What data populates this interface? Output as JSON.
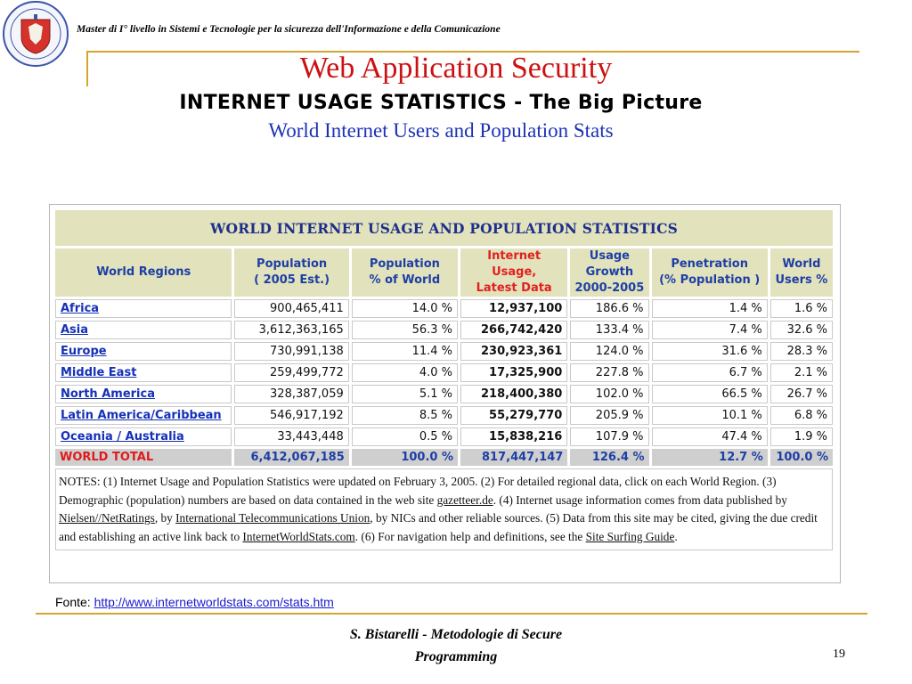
{
  "header": {
    "master_text": "Master di I° livello in Sistemi e Tecnologie per la sicurezza dell'Informazione e della Comunicazione",
    "slide_title": "Web Application Security"
  },
  "headings": {
    "main": "INTERNET USAGE STATISTICS - The Big Picture",
    "sub": "World Internet Users and Population Stats"
  },
  "table": {
    "caption": "WORLD INTERNET USAGE AND POPULATION STATISTICS",
    "columns": [
      [
        "World Regions"
      ],
      [
        "Population",
        "( 2005 Est.)"
      ],
      [
        "Population",
        "% of World"
      ],
      [
        "Internet Usage,",
        "Latest Data"
      ],
      [
        "Usage",
        "Growth",
        "2000-2005"
      ],
      [
        "Penetration",
        "(% Population )"
      ],
      [
        "World",
        "Users %"
      ]
    ],
    "rows": [
      [
        "Africa",
        "900,465,411",
        "14.0 %",
        "12,937,100",
        "186.6 %",
        "1.4 %",
        "1.6 %"
      ],
      [
        "Asia",
        "3,612,363,165",
        "56.3 %",
        "266,742,420",
        "133.4 %",
        "7.4 %",
        "32.6 %"
      ],
      [
        "Europe",
        "730,991,138",
        "11.4 %",
        "230,923,361",
        "124.0 %",
        "31.6 %",
        "28.3 %"
      ],
      [
        "Middle East",
        "259,499,772",
        "4.0 %",
        "17,325,900",
        "227.8 %",
        "6.7 %",
        "2.1 %"
      ],
      [
        "North America",
        "328,387,059",
        "5.1 %",
        "218,400,380",
        "102.0 %",
        "66.5 %",
        "26.7 %"
      ],
      [
        "Latin America/Caribbean",
        "546,917,192",
        "8.5 %",
        "55,279,770",
        "205.9 %",
        "10.1 %",
        "6.8 %"
      ],
      [
        "Oceania / Australia",
        "33,443,448",
        "0.5 %",
        "15,838,216",
        "107.9 %",
        "47.4 %",
        "1.9 %"
      ]
    ],
    "total": [
      "WORLD TOTAL",
      "6,412,067,185",
      "100.0 %",
      "817,447,147",
      "126.4 %",
      "12.7 %",
      "100.0 %"
    ],
    "notes": {
      "p1": "NOTES: (1) Internet Usage and Population Statistics were updated on February 3, 2005. (2) For detailed regional data, click on each World Region. (3) Demographic (population) numbers are based on data contained in the web site ",
      "link1": "gazetteer.de",
      "p2": ". (4) Internet usage information comes from data published by ",
      "link2": "Nielsen//NetRatings",
      "p3": ", by ",
      "link3": "International Telecommunications Union",
      "p4": ", by NICs and other reliable sources. (5) Data from this site may be cited, giving the due credit and establishing an active link back to ",
      "link4": "InternetWorldStats.com",
      "p5": ". (6) For navigation help and definitions, see the ",
      "link5": "Site Surfing Guide",
      "p6": "."
    }
  },
  "source": {
    "label": "Fonte: ",
    "url": "http://www.internetworldstats.com/stats.htm"
  },
  "footer": {
    "author_line1": "S. Bistarelli - Metodologie di Secure",
    "author_line2": "Programming",
    "page_number": "19"
  },
  "colors": {
    "accent_rule": "#d4a531",
    "title_red": "#cc1111",
    "link_blue": "#1530b8",
    "header_fill": "#e2e2bc"
  }
}
